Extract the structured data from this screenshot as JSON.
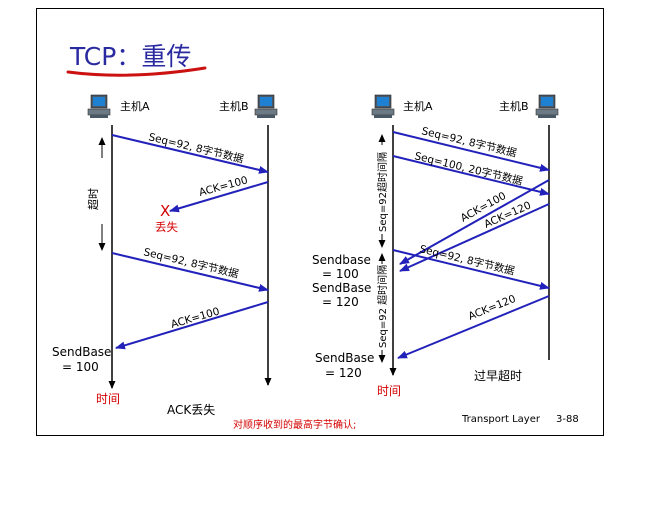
{
  "title": "TCP：重传",
  "colors": {
    "title": "#2a2aa0",
    "underline": "#cc1111",
    "arrow": "#2222bb",
    "red": "#d40000",
    "text": "#000000"
  },
  "left": {
    "host_a": "主机A",
    "host_b": "主机B",
    "msg1": "Seq=92, 8字节数据",
    "ack1": "ACK=100",
    "lost_mark": "X",
    "lost": "丢失",
    "timeout": "超时",
    "msg2": "Seq=92, 8字节数据",
    "ack2": "ACK=100",
    "sendbase_line1": "SendBase",
    "sendbase_line2": "= 100",
    "time": "时间",
    "caption": "ACK丢失"
  },
  "right": {
    "host_a": "主机A",
    "host_b": "主机B",
    "msg1": "Seq=92, 8字节数据",
    "msg2": "Seq=100, 20字节数据",
    "ack1": "ACK=100",
    "ack2": "ACK=120",
    "timer1": "Seq=92超时间隔",
    "timer2": "Seq=92 超时间隔",
    "sendbase1_line1": "Sendbase",
    "sendbase1_line2": "= 100",
    "sendbase2_line1": "SendBase",
    "sendbase2_line2": "= 120",
    "sendbase3_line1": "SendBase",
    "sendbase3_line2": "= 120",
    "msg3": "Seq=92, 8字节数据",
    "ack3": "ACK=120",
    "time": "时间",
    "caption": "过早超时"
  },
  "footer": {
    "layer": "Transport Layer",
    "page": "3-88",
    "note": "对顺序收到的最高字节确认;"
  },
  "icons": {
    "host": "computer-icon"
  }
}
